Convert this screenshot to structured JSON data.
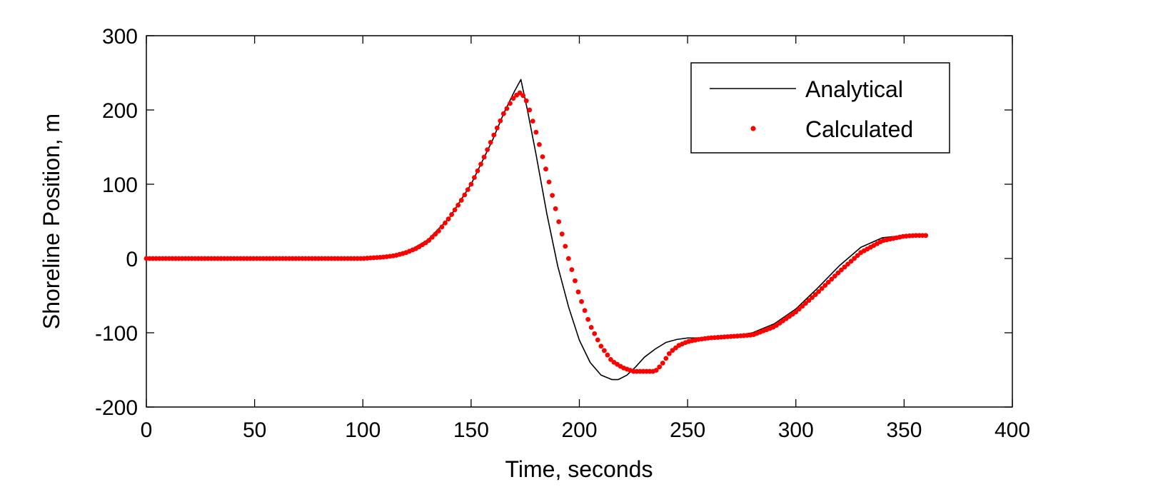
{
  "chart_data": {
    "type": "line",
    "title": "",
    "xlabel": "Time, seconds",
    "ylabel": "Shoreline Position, m",
    "xlim": [
      0,
      400
    ],
    "ylim": [
      -200,
      300
    ],
    "xticks": [
      0,
      50,
      100,
      150,
      200,
      250,
      300,
      350,
      400
    ],
    "yticks": [
      -200,
      -100,
      0,
      100,
      200,
      300
    ],
    "xtick_labels": [
      "0",
      "50",
      "100",
      "150",
      "200",
      "250",
      "300",
      "350",
      "400"
    ],
    "ytick_labels": [
      "-200",
      "-100",
      "0",
      "100",
      "200",
      "300"
    ],
    "grid": false,
    "legend_position": "top-right",
    "series": [
      {
        "name": "Analytical",
        "style": "line",
        "color": "#000000",
        "x": [
          0,
          100,
          110,
          120,
          130,
          140,
          150,
          160,
          165,
          170,
          173,
          176,
          180,
          185,
          190,
          195,
          200,
          205,
          210,
          215,
          218,
          222,
          226,
          230,
          235,
          240,
          245,
          250,
          255,
          260,
          270,
          280,
          290,
          300,
          310,
          320,
          330,
          340,
          350,
          355,
          360
        ],
        "y": [
          0,
          0,
          2,
          8,
          25,
          55,
          100,
          160,
          195,
          225,
          241,
          200,
          140,
          60,
          -10,
          -65,
          -110,
          -140,
          -157,
          -163,
          -163,
          -157,
          -146,
          -133,
          -122,
          -113,
          -109,
          -107,
          -107,
          -106,
          -105,
          -100,
          -88,
          -68,
          -40,
          -10,
          15,
          28,
          31,
          31,
          31
        ]
      },
      {
        "name": "Calculated",
        "style": "markers",
        "color": "#ff0000",
        "x": [
          0,
          100,
          105,
          110,
          115,
          120,
          125,
          130,
          135,
          140,
          145,
          150,
          155,
          160,
          165,
          170,
          173,
          176,
          180,
          185,
          190,
          195,
          200,
          205,
          210,
          215,
          220,
          225,
          230,
          235,
          238,
          242,
          246,
          250,
          255,
          260,
          265,
          270,
          280,
          290,
          300,
          310,
          320,
          330,
          340,
          350,
          355,
          360
        ],
        "y": [
          0,
          0,
          1,
          2,
          4,
          8,
          14,
          23,
          37,
          55,
          76,
          100,
          130,
          163,
          195,
          218,
          224,
          210,
          170,
          115,
          55,
          0,
          -50,
          -90,
          -118,
          -138,
          -147,
          -152,
          -152,
          -152,
          -143,
          -126,
          -117,
          -112,
          -109,
          -107,
          -106,
          -105,
          -103,
          -92,
          -72,
          -46,
          -18,
          8,
          24,
          30,
          31,
          31
        ]
      }
    ]
  }
}
